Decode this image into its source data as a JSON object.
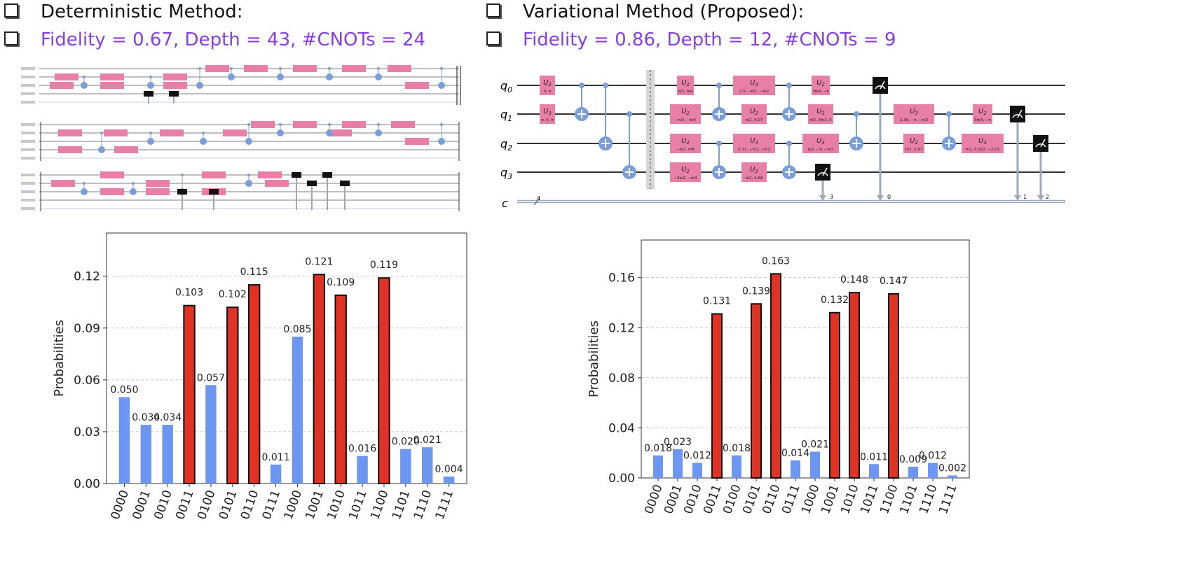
{
  "left_header": {
    "title": "Deterministic Method:",
    "metrics": "Fidelity = 0.67, Depth = 43, #CNOTs = 24"
  },
  "right_header": {
    "title": "Variational Method (Proposed):",
    "metrics": "Fidelity = 0.86, Depth = 12, #CNOTs = 9"
  },
  "circuit": {
    "qubit_labels": [
      "q",
      "q",
      "q",
      "q"
    ],
    "qubit_subs": [
      "0",
      "1",
      "2",
      "3"
    ],
    "classical_label": "c",
    "classical_width": "4",
    "measure_indices": [
      "3",
      "0",
      "1",
      "2"
    ],
    "gates": [
      {
        "name": "U",
        "sub": "2",
        "params": "0, π"
      },
      {
        "name": "U",
        "sub": "3",
        "params": "π, 0, π"
      },
      {
        "name": "U",
        "sub": "2",
        "params": "π/2, π/4"
      },
      {
        "name": "U",
        "sub": "2",
        "params": "−π/2, −π/4"
      },
      {
        "name": "U",
        "sub": "2",
        "params": "−π/2, π/4"
      },
      {
        "name": "U",
        "sub": "2",
        "params": "−3π/2, −π/4"
      },
      {
        "name": "U",
        "sub": "3",
        "params": "2.5, −π/1, −π/2"
      },
      {
        "name": "U",
        "sub": "2",
        "params": "π/2, 4.07"
      },
      {
        "name": "U",
        "sub": "3",
        "params": "3.11, −π/1, −π/2"
      },
      {
        "name": "U",
        "sub": "2",
        "params": "π/2, 4.68"
      },
      {
        "name": "U",
        "sub": "2",
        "params": "3π/4, −π"
      },
      {
        "name": "U",
        "sub": "3",
        "params": "π/2, 3π/2, 0"
      },
      {
        "name": "U",
        "sub": "3",
        "params": "π/2, −π, −π/2"
      },
      {
        "name": "U",
        "sub": "3",
        "params": "2.36, −π, −π/2"
      },
      {
        "name": "U",
        "sub": "2",
        "params": "π/2, 3.93"
      },
      {
        "name": "U",
        "sub": "2",
        "params": "3π/4, −π"
      },
      {
        "name": "U",
        "sub": "3",
        "params": "π/1, 0.322, −2.03"
      }
    ]
  },
  "colors": {
    "bar_default": "#6d95f2",
    "bar_highlight": "#e03325",
    "gate": "#e87fa6",
    "accent_text": "#8a3ee0"
  },
  "chart_data": [
    {
      "type": "bar",
      "ylabel": "Probabilities",
      "ylim": [
        0,
        0.145
      ],
      "yticks": [
        0.0,
        0.03,
        0.06,
        0.09,
        0.12
      ],
      "ytick_labels": [
        "0.00",
        "0.03",
        "0.06",
        "0.09",
        "0.12"
      ],
      "grid": "horizontal dashed",
      "categories": [
        "0000",
        "0001",
        "0010",
        "0011",
        "0100",
        "0101",
        "0110",
        "0111",
        "1000",
        "1001",
        "1010",
        "1011",
        "1100",
        "1101",
        "1110",
        "1111"
      ],
      "values": [
        0.05,
        0.034,
        0.034,
        0.103,
        0.057,
        0.102,
        0.115,
        0.011,
        0.085,
        0.121,
        0.109,
        0.016,
        0.119,
        0.02,
        0.021,
        0.004
      ],
      "value_labels": [
        "0.050",
        "0.034",
        "0.034",
        "0.103",
        "0.057",
        "0.102",
        "0.115",
        "0.011",
        "0.085",
        "0.121",
        "0.109",
        "0.016",
        "0.119",
        "0.020",
        "0.021",
        "0.004"
      ],
      "highlighted": [
        "0011",
        "0101",
        "0110",
        "1001",
        "1010",
        "1100"
      ]
    },
    {
      "type": "bar",
      "ylabel": "Probabilities",
      "ylim": [
        0,
        0.19
      ],
      "yticks": [
        0.0,
        0.04,
        0.08,
        0.12,
        0.16
      ],
      "ytick_labels": [
        "0.00",
        "0.04",
        "0.08",
        "0.12",
        "0.16"
      ],
      "grid": "horizontal dashed",
      "categories": [
        "0000",
        "0001",
        "0010",
        "0011",
        "0100",
        "0101",
        "0110",
        "0111",
        "1000",
        "1001",
        "1010",
        "1011",
        "1100",
        "1101",
        "1110",
        "1111"
      ],
      "values": [
        0.018,
        0.023,
        0.012,
        0.131,
        0.018,
        0.139,
        0.163,
        0.014,
        0.021,
        0.132,
        0.148,
        0.011,
        0.147,
        0.009,
        0.012,
        0.002
      ],
      "value_labels": [
        "0.018",
        "0.023",
        "0.012",
        "0.131",
        "0.018",
        "0.139",
        "0.163",
        "0.014",
        "0.021",
        "0.132",
        "0.148",
        "0.011",
        "0.147",
        "0.009",
        "0.012",
        "0.002"
      ],
      "highlighted": [
        "0011",
        "0101",
        "0110",
        "1001",
        "1010",
        "1100"
      ]
    }
  ]
}
